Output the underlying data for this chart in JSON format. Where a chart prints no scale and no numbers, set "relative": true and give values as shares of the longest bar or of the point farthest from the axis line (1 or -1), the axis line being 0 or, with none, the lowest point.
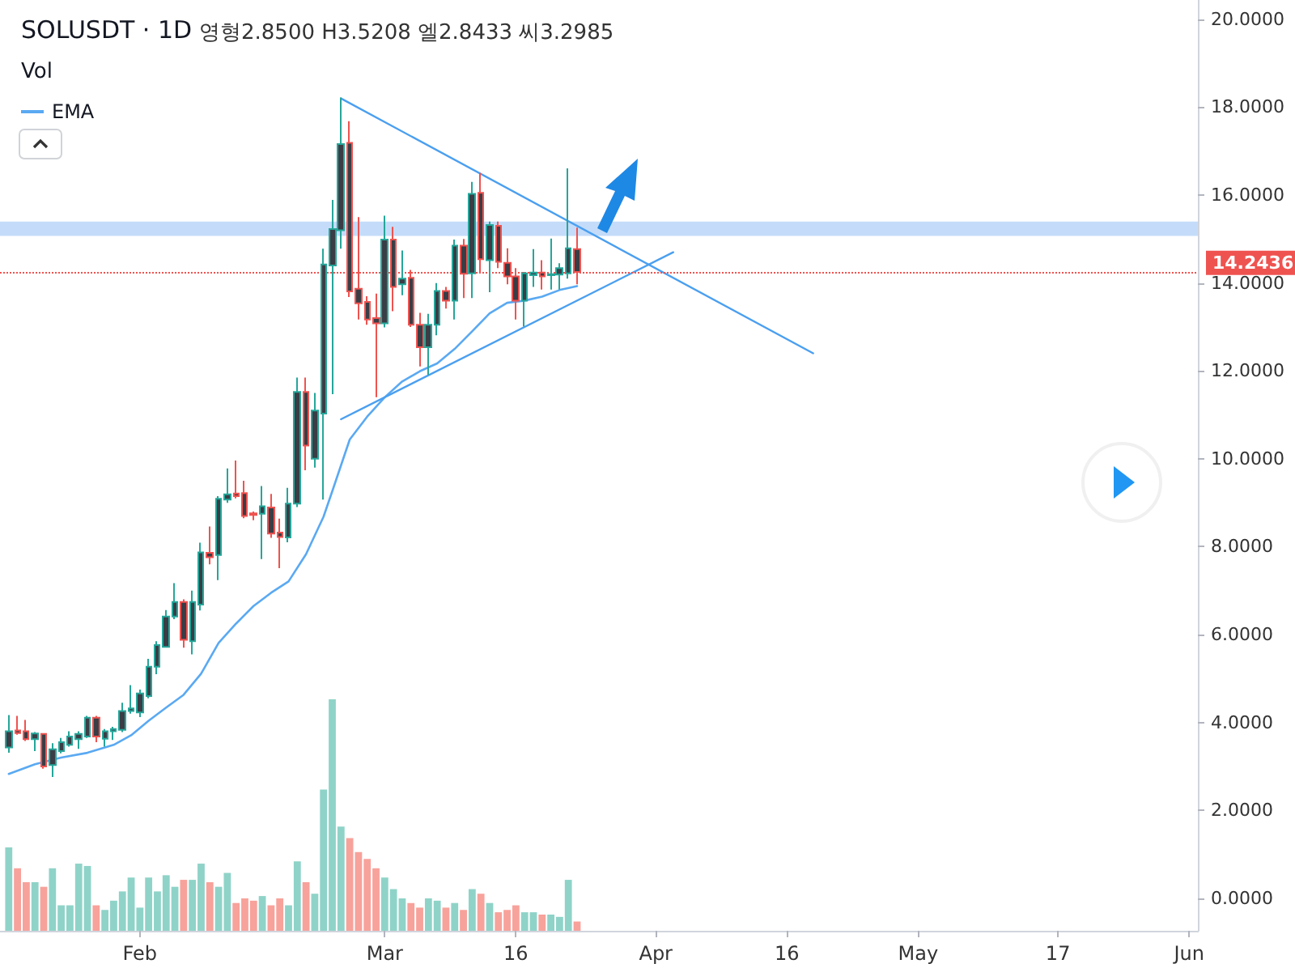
{
  "chart_data": [
    {
      "type": "candlestick",
      "title": "SOLUSDT · 1D",
      "subtitle": "영형2.8500 H3.5208 엘2.8433 씨3.2985",
      "x": [
        "--01-17",
        "--01-18",
        "--01-19",
        "--01-20",
        "--01-21",
        "--01-22",
        "--01-23",
        "--01-24",
        "--01-25",
        "--01-26",
        "--01-27",
        "--01-28",
        "--01-29",
        "--01-30",
        "--01-31",
        "--02-01",
        "--02-02",
        "--02-03",
        "--02-04",
        "--02-05",
        "--02-06",
        "--02-07",
        "--02-08",
        "--02-09",
        "--02-10",
        "--02-11",
        "--02-12",
        "--02-13",
        "--02-14",
        "--02-15",
        "--02-16",
        "--02-17",
        "--02-18",
        "--02-19",
        "--02-20",
        "--02-21",
        "--02-22",
        "--02-23",
        "--02-24",
        "--02-25",
        "--02-26",
        "--02-27",
        "--02-28",
        "--03-01",
        "--03-02",
        "--03-03",
        "--03-04",
        "--03-05",
        "--03-06",
        "--03-07",
        "--03-08",
        "--03-09",
        "--03-10",
        "--03-11",
        "--03-12",
        "--03-13",
        "--03-14",
        "--03-15",
        "--03-16",
        "--03-17",
        "--03-18",
        "--03-19",
        "--03-20",
        "--03-21",
        "--03-22",
        "--03-23"
      ],
      "ohlc": [
        [
          3.43,
          4.17,
          3.31,
          3.8
        ],
        [
          3.82,
          4.15,
          3.72,
          3.76
        ],
        [
          3.8,
          4.06,
          3.58,
          3.62
        ],
        [
          3.62,
          3.78,
          3.35,
          3.75
        ],
        [
          3.74,
          3.76,
          2.95,
          3.0
        ],
        [
          3.03,
          3.53,
          2.76,
          3.39
        ],
        [
          3.35,
          3.65,
          3.3,
          3.55
        ],
        [
          3.49,
          3.8,
          3.45,
          3.68
        ],
        [
          3.62,
          3.8,
          3.4,
          3.74
        ],
        [
          3.68,
          4.15,
          3.65,
          4.11
        ],
        [
          4.11,
          4.15,
          3.55,
          3.68
        ],
        [
          3.63,
          3.85,
          3.45,
          3.8
        ],
        [
          3.8,
          3.9,
          3.6,
          3.85
        ],
        [
          3.83,
          4.45,
          3.78,
          4.26
        ],
        [
          4.26,
          4.85,
          4.2,
          4.32
        ],
        [
          4.23,
          4.75,
          4.12,
          4.66
        ],
        [
          4.6,
          5.45,
          4.55,
          5.27
        ],
        [
          5.27,
          5.85,
          5.1,
          5.76
        ],
        [
          5.72,
          6.56,
          5.7,
          6.41
        ],
        [
          6.41,
          7.17,
          6.35,
          6.74
        ],
        [
          6.74,
          6.8,
          5.7,
          5.88
        ],
        [
          5.85,
          7.0,
          5.55,
          6.74
        ],
        [
          6.68,
          8.09,
          6.55,
          7.87
        ],
        [
          7.86,
          8.46,
          7.6,
          7.76
        ],
        [
          7.81,
          9.15,
          7.24,
          9.09
        ],
        [
          9.07,
          9.78,
          9.0,
          9.19
        ],
        [
          9.21,
          9.96,
          9.1,
          9.15
        ],
        [
          9.22,
          9.5,
          8.65,
          8.7
        ],
        [
          8.76,
          8.8,
          8.6,
          8.72
        ],
        [
          8.75,
          9.38,
          7.72,
          8.92
        ],
        [
          8.89,
          9.2,
          8.2,
          8.3
        ],
        [
          8.32,
          8.64,
          7.51,
          8.22
        ],
        [
          8.21,
          9.34,
          8.1,
          8.98
        ],
        [
          8.98,
          11.85,
          8.9,
          11.52
        ],
        [
          11.52,
          11.85,
          9.74,
          10.3
        ],
        [
          10.0,
          11.5,
          9.8,
          11.1
        ],
        [
          11.03,
          14.78,
          9.07,
          14.42
        ],
        [
          14.4,
          15.89,
          11.47,
          15.23
        ],
        [
          15.2,
          18.22,
          14.78,
          17.16
        ],
        [
          17.19,
          17.68,
          13.68,
          13.81
        ],
        [
          13.87,
          15.5,
          13.17,
          13.54
        ],
        [
          13.57,
          13.7,
          13.05,
          13.17
        ],
        [
          13.2,
          13.76,
          11.4,
          13.08
        ],
        [
          13.08,
          15.53,
          12.99,
          14.99
        ],
        [
          14.99,
          15.28,
          13.36,
          13.91
        ],
        [
          13.97,
          14.74,
          13.72,
          14.1
        ],
        [
          14.12,
          14.3,
          13.0,
          13.05
        ],
        [
          13.05,
          13.32,
          12.1,
          12.54
        ],
        [
          12.54,
          13.3,
          11.91,
          13.05
        ],
        [
          13.05,
          14.0,
          12.81,
          13.82
        ],
        [
          13.82,
          13.91,
          13.42,
          13.6
        ],
        [
          13.6,
          14.99,
          13.17,
          14.85
        ],
        [
          14.85,
          15.0,
          13.66,
          14.21
        ],
        [
          14.22,
          16.3,
          13.66,
          16.03
        ],
        [
          16.05,
          16.51,
          14.22,
          14.54
        ],
        [
          14.52,
          15.4,
          13.79,
          15.32
        ],
        [
          15.3,
          15.4,
          14.34,
          14.48
        ],
        [
          14.46,
          14.79,
          13.97,
          14.15
        ],
        [
          14.15,
          14.34,
          13.17,
          13.6
        ],
        [
          13.6,
          14.25,
          13.01,
          14.22
        ],
        [
          14.18,
          14.77,
          13.91,
          14.24
        ],
        [
          14.24,
          14.52,
          13.85,
          14.15
        ],
        [
          14.18,
          15.01,
          13.85,
          14.2
        ],
        [
          14.19,
          14.45,
          13.85,
          14.34
        ],
        [
          14.22,
          16.61,
          14.1,
          14.79
        ],
        [
          14.77,
          15.26,
          13.97,
          14.25
        ]
      ],
      "colors": [
        "#26a69a",
        "#ef5350",
        "#ef5350",
        "#26a69a",
        "#ef5350",
        "#26a69a",
        "#26a69a",
        "#26a69a",
        "#26a69a",
        "#26a69a",
        "#ef5350",
        "#26a69a",
        "#26a69a",
        "#26a69a",
        "#26a69a",
        "#26a69a",
        "#26a69a",
        "#26a69a",
        "#26a69a",
        "#26a69a",
        "#ef5350",
        "#26a69a",
        "#26a69a",
        "#ef5350",
        "#26a69a",
        "#26a69a",
        "#ef5350",
        "#ef5350",
        "#ef5350",
        "#26a69a",
        "#ef5350",
        "#ef5350",
        "#26a69a",
        "#26a69a",
        "#ef5350",
        "#26a69a",
        "#26a69a",
        "#26a69a",
        "#26a69a",
        "#ef5350",
        "#ef5350",
        "#ef5350",
        "#ef5350",
        "#26a69a",
        "#ef5350",
        "#26a69a",
        "#ef5350",
        "#ef5350",
        "#26a69a",
        "#26a69a",
        "#ef5350",
        "#26a69a",
        "#ef5350",
        "#26a69a",
        "#ef5350",
        "#26a69a",
        "#ef5350",
        "#ef5350",
        "#ef5350",
        "#26a69a",
        "#26a69a",
        "#ef5350",
        "#26a69a",
        "#26a69a",
        "#26a69a",
        "#ef5350"
      ],
      "series": [
        {
          "name": "EMA",
          "type": "line",
          "color": "#5aa9f2",
          "x": [
            "--01-17",
            "--01-20",
            "--01-23",
            "--01-26",
            "--01-29",
            "--01-31",
            "--02-02",
            "--02-04",
            "--02-06",
            "--02-08",
            "--02-10",
            "--02-12",
            "--02-14",
            "--02-16",
            "--02-18",
            "--02-20",
            "--02-22",
            "--02-23",
            "--02-25",
            "--02-27",
            "--03-01",
            "--03-03",
            "--03-05",
            "--03-07",
            "--03-09",
            "--03-11",
            "--03-13",
            "--03-15",
            "--03-17",
            "--03-19",
            "--03-21",
            "--03-23"
          ],
          "values": [
            2.83,
            3.05,
            3.2,
            3.31,
            3.49,
            3.71,
            4.04,
            4.34,
            4.63,
            5.11,
            5.81,
            6.25,
            6.65,
            6.95,
            7.21,
            7.83,
            8.68,
            9.26,
            10.44,
            10.96,
            11.4,
            11.76,
            11.99,
            12.17,
            12.5,
            12.9,
            13.31,
            13.55,
            13.6,
            13.69,
            13.84,
            13.93
          ]
        },
        {
          "type": "line",
          "color": "#4a9ff0",
          "x": [
            "--02-24",
            "--04-19"
          ],
          "values": [
            18.2,
            12.4
          ]
        },
        {
          "type": "line",
          "color": "#4a9ff0",
          "x": [
            "--02-24",
            "--04-03"
          ],
          "values": [
            10.9,
            14.7
          ]
        }
      ],
      "marker": "none",
      "line_style": "solid",
      "ref_lines": [
        {
          "axis": "y",
          "value": 14.2436,
          "label": "14.2436",
          "color": "#ef5350",
          "line_style": "dotted"
        }
      ],
      "bands": [
        {
          "axis": "y",
          "from": 15.07,
          "to": 15.4,
          "color": "#9cc4f5"
        }
      ],
      "xlim": [
        "--01-16",
        "--06-02"
      ],
      "xticks": [
        {
          "value": "--02-01",
          "label": "Feb"
        },
        {
          "value": "--03-01",
          "label": "Mar"
        },
        {
          "value": "--03-16",
          "label": "16"
        },
        {
          "value": "--04-01",
          "label": "Apr"
        },
        {
          "value": "--04-16",
          "label": "16"
        },
        {
          "value": "--05-01",
          "label": "May"
        },
        {
          "value": "--05-17",
          "label": "17"
        },
        {
          "value": "--06-01",
          "label": "Jun"
        }
      ],
      "ylim": [
        -0.74,
        20.44
      ],
      "yticks": [
        {
          "value": 0,
          "label": "0.0000"
        },
        {
          "value": 2,
          "label": "2.0000"
        },
        {
          "value": 4,
          "label": "4.0000"
        },
        {
          "value": 6,
          "label": "6.0000"
        },
        {
          "value": 8,
          "label": "8.0000"
        },
        {
          "value": 10,
          "label": "10.0000"
        },
        {
          "value": 12,
          "label": "12.0000"
        },
        {
          "value": 14,
          "label": "14.0000"
        },
        {
          "value": 16,
          "label": "16.0000"
        },
        {
          "value": 18,
          "label": "18.0000"
        },
        {
          "value": 20,
          "label": "20.0000"
        }
      ],
      "legend": "top left",
      "grid": false
    },
    {
      "type": "bar",
      "title": "Vol",
      "relative": true,
      "tick_labels": false,
      "x": [
        "--01-17",
        "--01-18",
        "--01-19",
        "--01-20",
        "--01-21",
        "--01-22",
        "--01-23",
        "--01-24",
        "--01-25",
        "--01-26",
        "--01-27",
        "--01-28",
        "--01-29",
        "--01-30",
        "--01-31",
        "--02-01",
        "--02-02",
        "--02-03",
        "--02-04",
        "--02-05",
        "--02-06",
        "--02-07",
        "--02-08",
        "--02-09",
        "--02-10",
        "--02-11",
        "--02-12",
        "--02-13",
        "--02-14",
        "--02-15",
        "--02-16",
        "--02-17",
        "--02-18",
        "--02-19",
        "--02-20",
        "--02-21",
        "--02-22",
        "--02-23",
        "--02-24",
        "--02-25",
        "--02-26",
        "--02-27",
        "--02-28",
        "--03-01",
        "--03-02",
        "--03-03",
        "--03-04",
        "--03-05",
        "--03-06",
        "--03-07",
        "--03-08",
        "--03-09",
        "--03-10",
        "--03-11",
        "--03-12",
        "--03-13",
        "--03-14",
        "--03-15",
        "--03-16",
        "--03-17",
        "--03-18",
        "--03-19",
        "--03-20",
        "--03-21",
        "--03-22",
        "--03-23"
      ],
      "values": [
        0.36,
        0.27,
        0.21,
        0.21,
        0.19,
        0.27,
        0.11,
        0.11,
        0.29,
        0.28,
        0.11,
        0.09,
        0.13,
        0.17,
        0.23,
        0.1,
        0.23,
        0.17,
        0.24,
        0.19,
        0.22,
        0.22,
        0.29,
        0.21,
        0.19,
        0.25,
        0.12,
        0.14,
        0.13,
        0.15,
        0.11,
        0.14,
        0.11,
        0.3,
        0.21,
        0.16,
        0.61,
        1,
        0.45,
        0.4,
        0.34,
        0.31,
        0.27,
        0.23,
        0.18,
        0.14,
        0.12,
        0.1,
        0.14,
        0.13,
        0.1,
        0.12,
        0.09,
        0.18,
        0.16,
        0.12,
        0.08,
        0.09,
        0.11,
        0.08,
        0.08,
        0.07,
        0.07,
        0.06,
        0.22,
        0.04
      ],
      "colors": [
        "#8fd3c8",
        "#f7a29b",
        "#f7a29b",
        "#8fd3c8",
        "#f7a29b",
        "#8fd3c8",
        "#8fd3c8",
        "#8fd3c8",
        "#8fd3c8",
        "#8fd3c8",
        "#f7a29b",
        "#8fd3c8",
        "#8fd3c8",
        "#8fd3c8",
        "#8fd3c8",
        "#8fd3c8",
        "#8fd3c8",
        "#8fd3c8",
        "#8fd3c8",
        "#8fd3c8",
        "#f7a29b",
        "#8fd3c8",
        "#8fd3c8",
        "#f7a29b",
        "#8fd3c8",
        "#8fd3c8",
        "#f7a29b",
        "#f7a29b",
        "#f7a29b",
        "#8fd3c8",
        "#f7a29b",
        "#f7a29b",
        "#8fd3c8",
        "#8fd3c8",
        "#f7a29b",
        "#8fd3c8",
        "#8fd3c8",
        "#8fd3c8",
        "#8fd3c8",
        "#f7a29b",
        "#f7a29b",
        "#f7a29b",
        "#f7a29b",
        "#8fd3c8",
        "#8fd3c8",
        "#8fd3c8",
        "#f7a29b",
        "#f7a29b",
        "#8fd3c8",
        "#8fd3c8",
        "#f7a29b",
        "#8fd3c8",
        "#f7a29b",
        "#8fd3c8",
        "#f7a29b",
        "#8fd3c8",
        "#f7a29b",
        "#f7a29b",
        "#f7a29b",
        "#8fd3c8",
        "#8fd3c8",
        "#f7a29b",
        "#8fd3c8",
        "#8fd3c8",
        "#8fd3c8",
        "#f7a29b"
      ],
      "xlim": [
        "--01-16",
        "--06-02"
      ],
      "xticks": [
        {
          "value": "--02-01",
          "label": "Feb"
        },
        {
          "value": "--03-01",
          "label": "Mar"
        },
        {
          "value": "--03-16",
          "label": "16"
        },
        {
          "value": "--04-01",
          "label": "Apr"
        },
        {
          "value": "--04-16",
          "label": "16"
        },
        {
          "value": "--05-01",
          "label": "May"
        },
        {
          "value": "--05-17",
          "label": "17"
        },
        {
          "value": "--06-01",
          "label": "Jun"
        }
      ]
    }
  ]
}
